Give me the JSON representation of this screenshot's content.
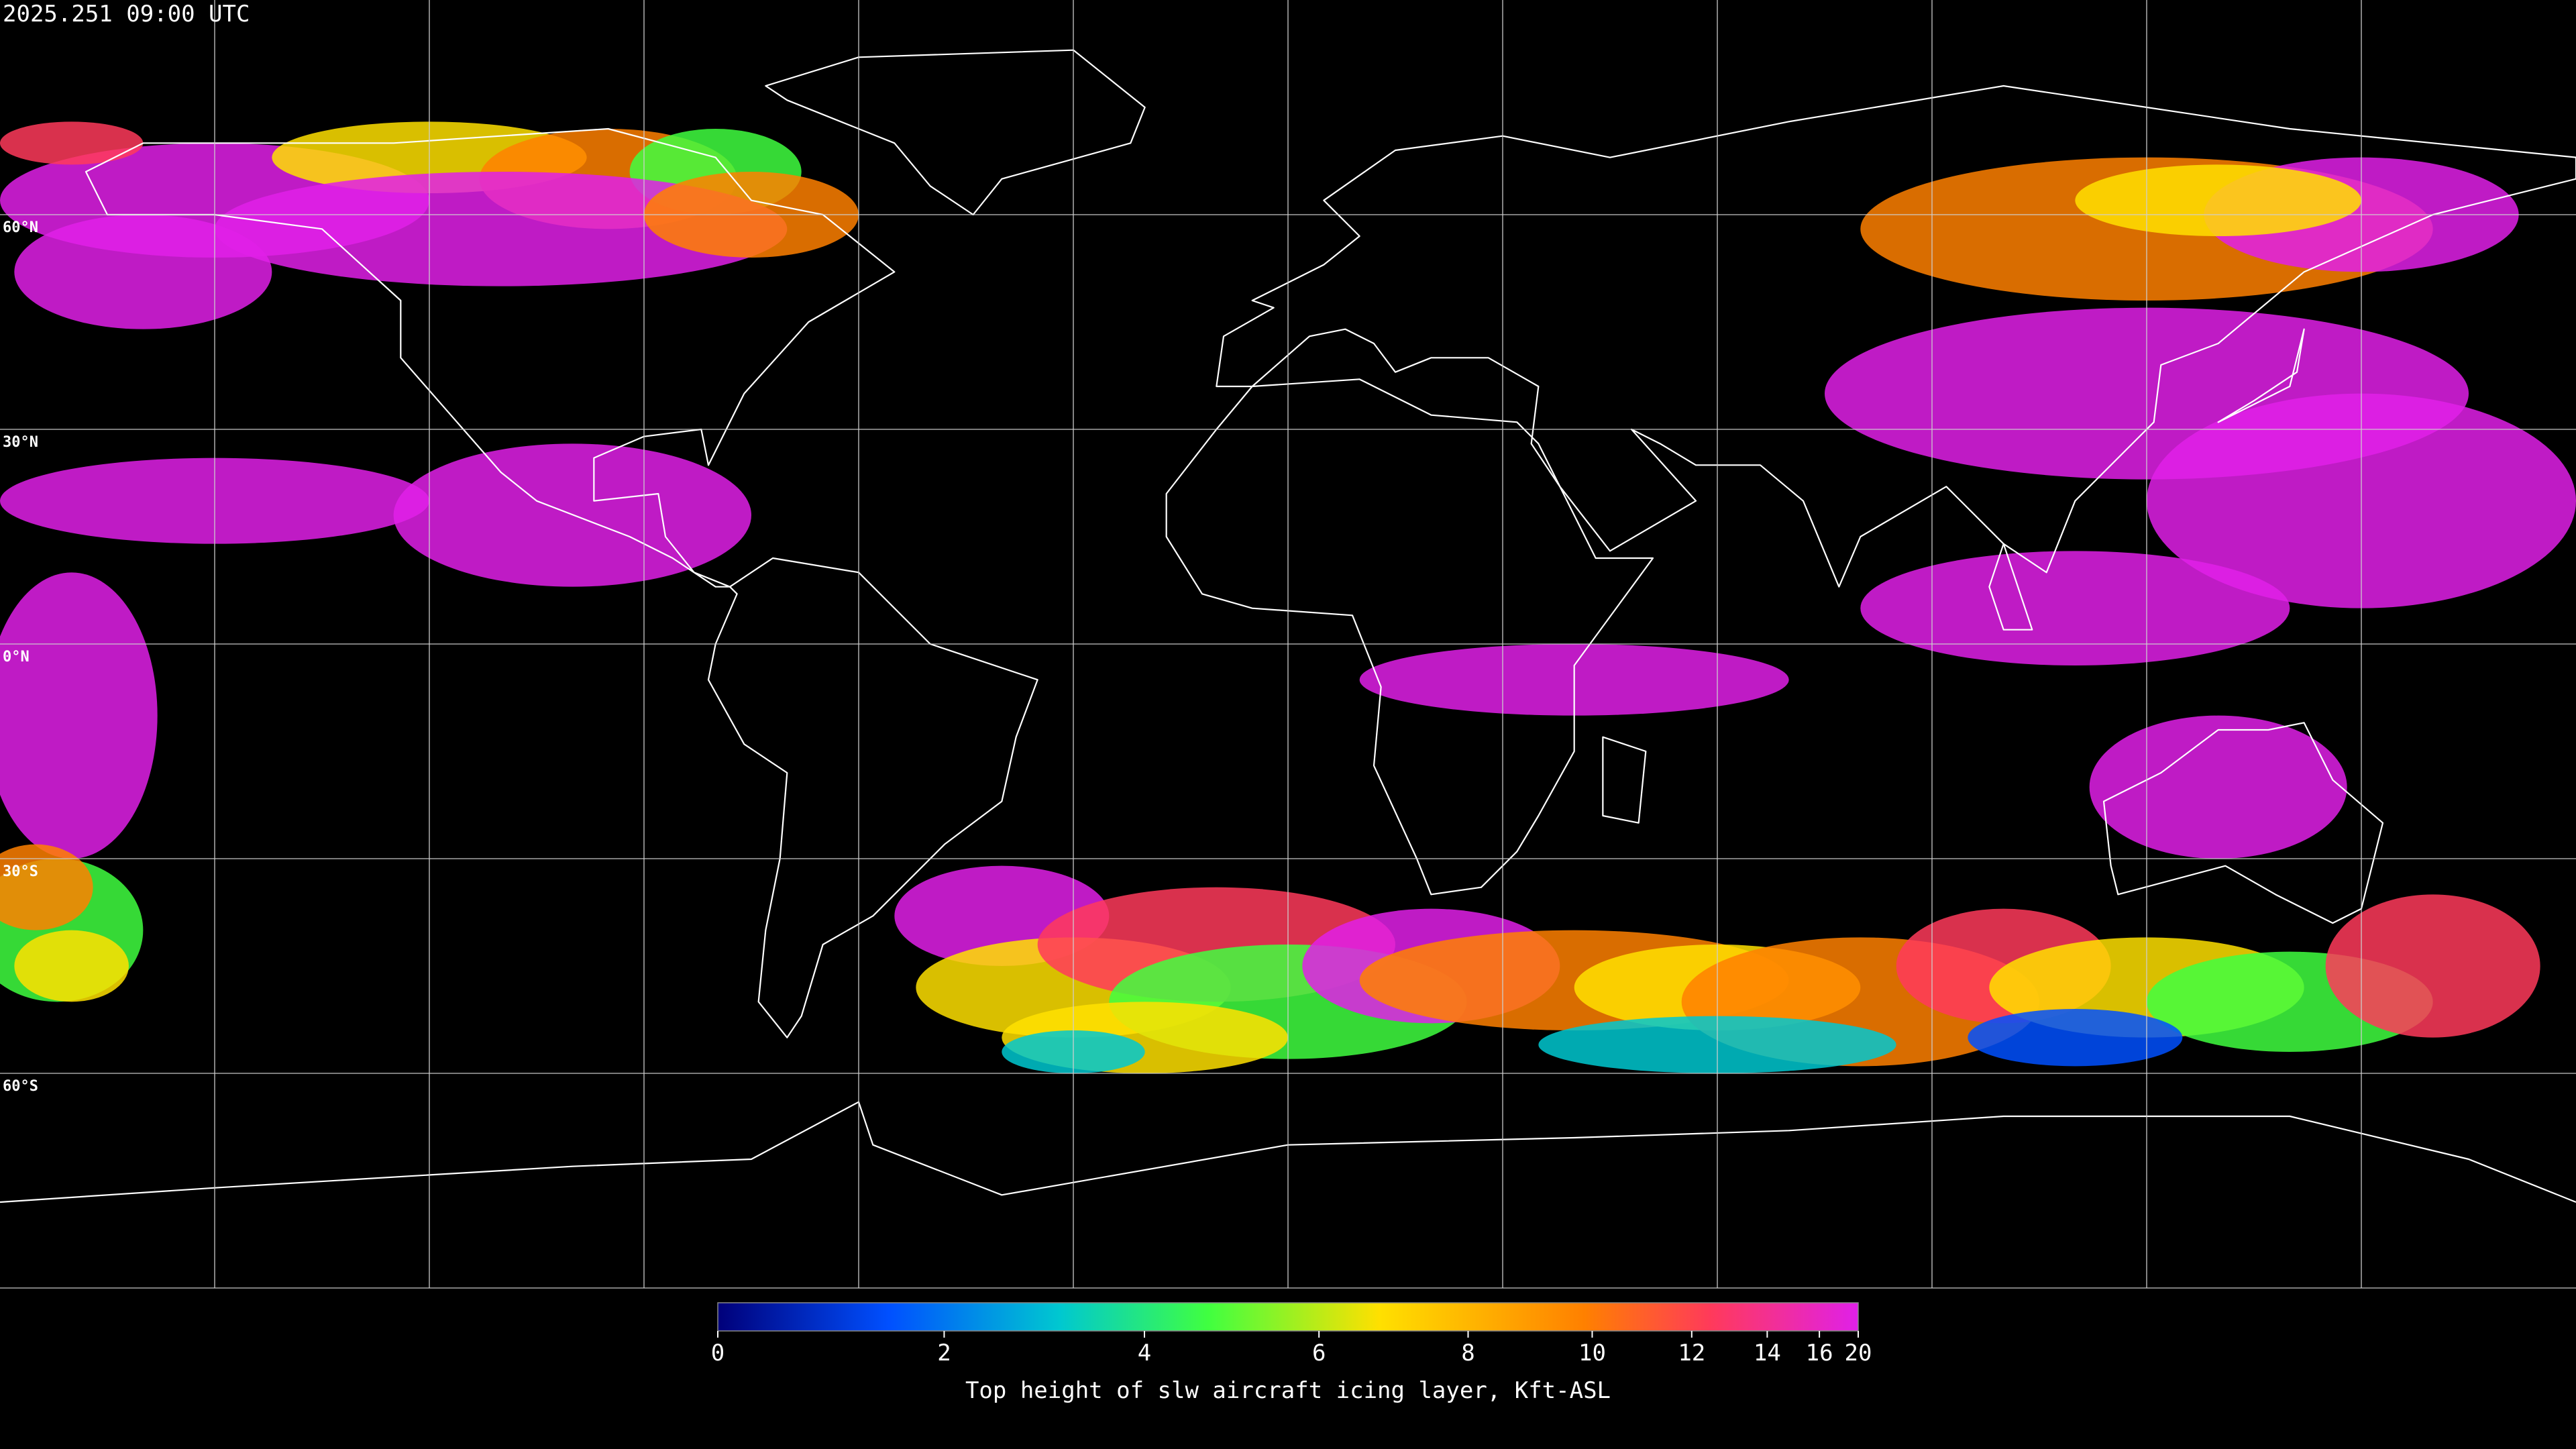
{
  "header": {
    "timestamp": "2025.251 09:00 UTC"
  },
  "map": {
    "lat_gridlines": [
      {
        "value": 60,
        "label": "60°N"
      },
      {
        "value": 30,
        "label": "30°N"
      },
      {
        "value": 0,
        "label": "0°N"
      },
      {
        "value": -30,
        "label": "30°S"
      },
      {
        "value": -60,
        "label": "60°S"
      }
    ]
  },
  "colorbar": {
    "title": "Top height of slw aircraft icing layer, Kft-ASL",
    "range": [
      0,
      20
    ],
    "ticks": [
      0,
      2,
      4,
      6,
      8,
      10,
      12,
      14,
      16,
      20
    ]
  }
}
